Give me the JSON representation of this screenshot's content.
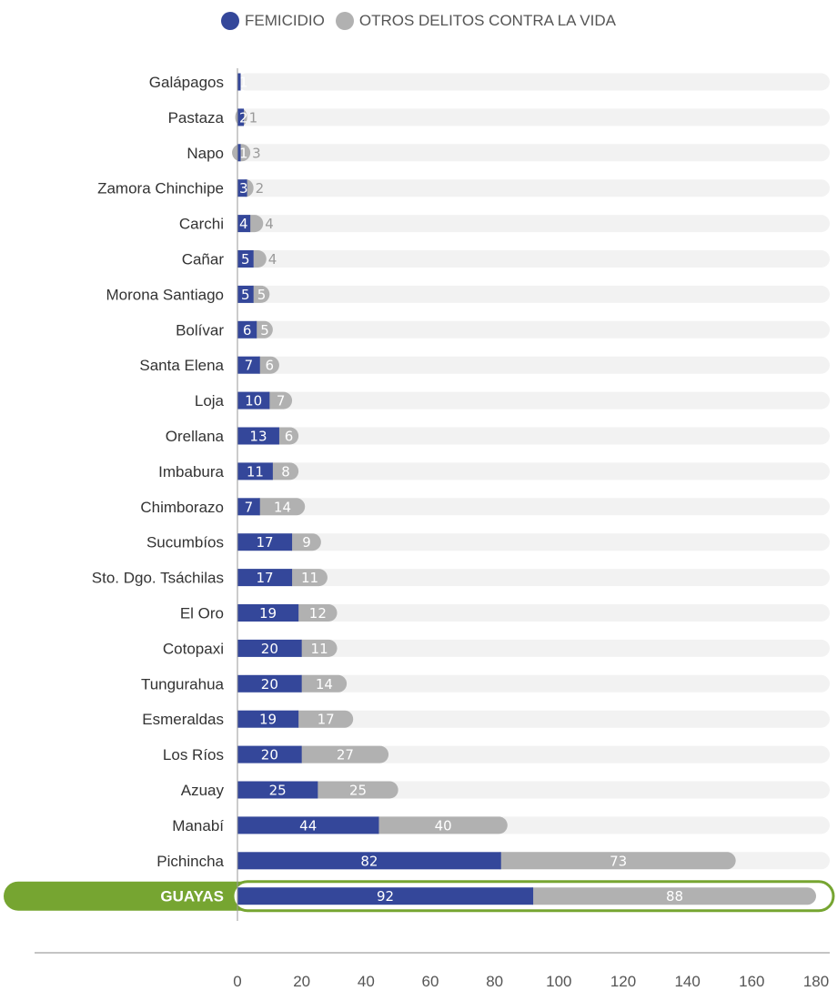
{
  "chart_data": {
    "type": "bar",
    "stacked": true,
    "orientation": "horizontal",
    "categories": [
      "Galápagos",
      "Pastaza",
      "Napo",
      "Zamora Chinchipe",
      "Carchi",
      "Cañar",
      "Morona Santiago",
      "Bolívar",
      "Santa Elena",
      "Loja",
      "Orellana",
      "Imbabura",
      "Chimborazo",
      "Sucumbíos",
      "Sto. Dgo. Tsáchilas",
      "El Oro",
      "Cotopaxi",
      "Tungurahua",
      "Esmeraldas",
      "Los Ríos",
      "Azuay",
      "Manabí",
      "Pichincha",
      "GUAYAS"
    ],
    "series": [
      {
        "name": "FEMICIDIO",
        "color": "#34479a",
        "values": [
          1,
          2,
          1,
          3,
          4,
          5,
          5,
          6,
          7,
          10,
          13,
          11,
          7,
          17,
          17,
          19,
          20,
          20,
          19,
          20,
          25,
          44,
          82,
          92
        ]
      },
      {
        "name": "OTROS DELITOS CONTRA LA VIDA",
        "color": "#b1b1b1",
        "values": [
          0,
          1,
          3,
          2,
          4,
          4,
          5,
          5,
          6,
          7,
          6,
          8,
          14,
          9,
          11,
          12,
          11,
          14,
          17,
          27,
          25,
          40,
          73,
          88
        ]
      }
    ],
    "highlight_category": "GUAYAS",
    "highlight_color": "#76a531",
    "xlim": [
      0,
      180
    ],
    "xticks": [
      "0",
      "20",
      "40",
      "60",
      "80",
      "100",
      "120",
      "140",
      "160",
      "180"
    ],
    "legend_position": "top-center",
    "background_track_color": "#f2f2f2",
    "xlabel": "",
    "ylabel": ""
  }
}
